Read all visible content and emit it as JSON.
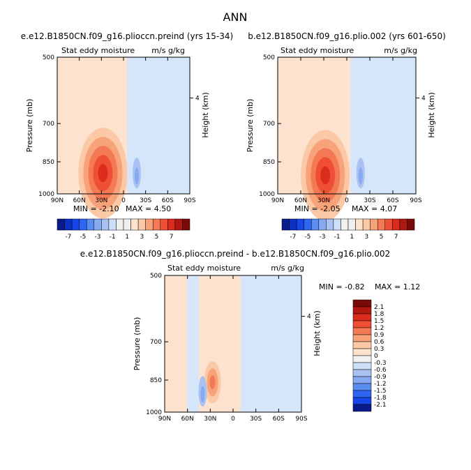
{
  "figure": {
    "title": "ANN"
  },
  "colors": {
    "neg": [
      "#0a1a8c",
      "#0c2fc4",
      "#1547e8",
      "#2e66f2",
      "#5b8cf0",
      "#86a9ef",
      "#aac2f2",
      "#cddef8"
    ],
    "zero": "#f0f0f0",
    "pos": [
      "#fde2cd",
      "#fbc9a6",
      "#f8a27a",
      "#f47a55",
      "#ee4f35",
      "#dc2c1e",
      "#b01810",
      "#7a0a07"
    ],
    "background_neg": "#d5e6fb",
    "background_pos": "#fde3cf"
  },
  "chart_data": [
    {
      "type": "heatmap",
      "title": "e.e12.B1850CN.f09_g16.plioccn.preind (yrs 15-34)",
      "left_label": "Stat eddy moisture",
      "units": "m/s g/kg",
      "xlabel": "",
      "ylabel": "Pressure (mb)",
      "right_label": "Height (km)",
      "x_ticks": [
        "90N",
        "60N",
        "30N",
        "0",
        "30S",
        "60S",
        "90S"
      ],
      "y_ticks": [
        "500",
        "700",
        "850",
        "1000"
      ],
      "right_ticks": [
        "4"
      ],
      "ylim": [
        1000,
        500
      ],
      "min_label": "MIN = -2.10",
      "max_label": "MAX = 4.50",
      "min": -2.1,
      "max": 4.5,
      "peak": {
        "lat": 28,
        "p": 900,
        "value": 4.5
      }
    },
    {
      "type": "heatmap",
      "title": "b.e12.B1850CN.f09_g16.plio.002 (yrs 601-650)",
      "left_label": "Stat eddy moisture",
      "units": "m/s g/kg",
      "xlabel": "",
      "ylabel": "Pressure (mb)",
      "right_label": "Height (km)",
      "x_ticks": [
        "90N",
        "60N",
        "30N",
        "0",
        "30S",
        "60S",
        "90S"
      ],
      "y_ticks": [
        "500",
        "700",
        "850",
        "1000"
      ],
      "right_ticks": [
        "4"
      ],
      "ylim": [
        1000,
        500
      ],
      "min_label": "MIN = -2.05",
      "max_label": "MAX = 4.07",
      "min": -2.05,
      "max": 4.07,
      "peak": {
        "lat": 28,
        "p": 910,
        "value": 4.07
      }
    },
    {
      "type": "heatmap",
      "title": "e.e12.B1850CN.f09_g16.plioccn.preind - b.e12.B1850CN.f09_g16.plio.002",
      "left_label": "Stat eddy moisture",
      "units": "m/s g/kg",
      "xlabel": "",
      "ylabel": "Pressure (mb)",
      "right_label": "Height (km)",
      "x_ticks": [
        "90N",
        "60N",
        "30N",
        "0",
        "30S",
        "60S",
        "90S"
      ],
      "y_ticks": [
        "500",
        "700",
        "850",
        "1000"
      ],
      "right_ticks": [
        "4"
      ],
      "ylim": [
        1000,
        500
      ],
      "min_label": "MIN =   -0.82",
      "max_label": "MAX =   1.12",
      "min": -0.82,
      "max": 1.12,
      "peak": {
        "lat": 27,
        "p": 860,
        "value": 1.12
      }
    }
  ],
  "colorbar_top": {
    "labels": [
      "-7",
      "-5",
      "-3",
      "-1",
      "1",
      "3",
      "5",
      "7"
    ]
  },
  "colorbar_diff": {
    "labels": [
      "2.1",
      "1.8",
      "1.5",
      "1.2",
      "0.9",
      "0.6",
      "0.3",
      "0",
      "-0.3",
      "-0.6",
      "-0.9",
      "-1.2",
      "-1.5",
      "-1.8",
      "-2.1"
    ]
  }
}
